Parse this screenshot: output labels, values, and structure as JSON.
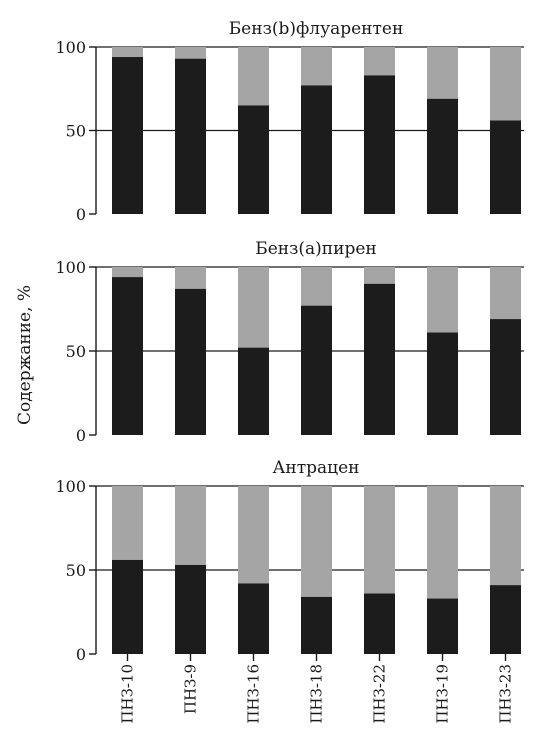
{
  "chart_data": {
    "type": "bar",
    "stacked": true,
    "ylabel": "Содержание, %",
    "categories": [
      "ПНЗ-10",
      "ПНЗ-9",
      "ПНЗ-16",
      "ПНЗ-18",
      "ПНЗ-22",
      "ПНЗ-19",
      "ПНЗ-23"
    ],
    "colors": {
      "dark": "#1c1c1c",
      "light": "#a5a5a5"
    },
    "panels": [
      {
        "title": "Бенз(b)флуарентен",
        "ylim": [
          0,
          100
        ],
        "yticks": [
          "0",
          "50",
          "100"
        ],
        "dark_values": [
          94,
          93,
          65,
          77,
          83,
          69,
          56
        ]
      },
      {
        "title": "Бенз(a)пирен",
        "ylim": [
          0,
          100
        ],
        "yticks": [
          "0",
          "50",
          "100"
        ],
        "dark_values": [
          94,
          87,
          52,
          77,
          90,
          61,
          69
        ]
      },
      {
        "title": "Антрацен",
        "ylim": [
          0,
          100
        ],
        "yticks": [
          "0",
          "50",
          "100"
        ],
        "dark_values": [
          56,
          53,
          42,
          34,
          36,
          33,
          41
        ]
      }
    ]
  }
}
